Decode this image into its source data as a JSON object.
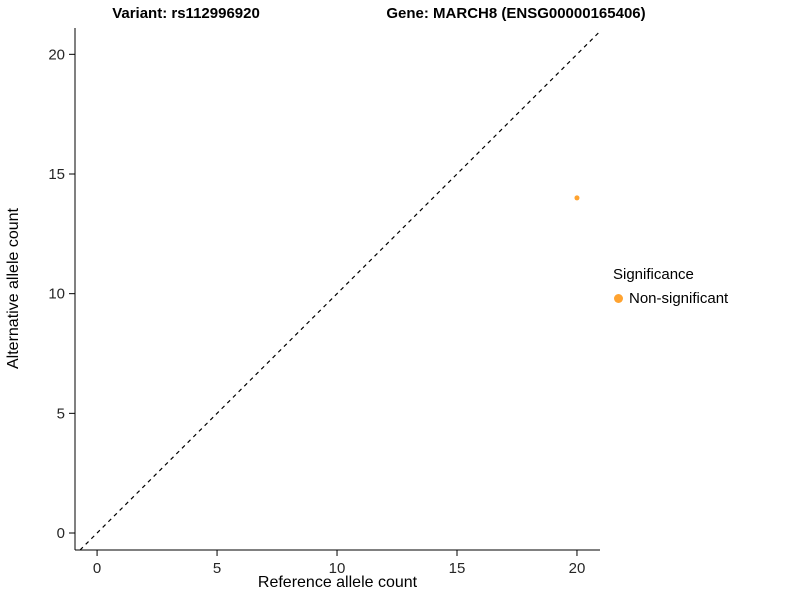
{
  "chart_data": {
    "type": "scatter",
    "title_left": "Variant: rs112996920",
    "title_right": "Gene: MARCH8 (ENSG00000165406)",
    "xlabel": "Reference allele count",
    "ylabel": "Alternative allele count",
    "xlim": [
      -0.92,
      20.96
    ],
    "ylim": [
      -0.71,
      21.1
    ],
    "xticks": [
      0,
      5,
      10,
      15,
      20
    ],
    "yticks": [
      0,
      5,
      10,
      15,
      20
    ],
    "grid": false,
    "axis_color": "#000000",
    "identity_line": {
      "style": "dashed",
      "color": "#000000",
      "from": [
        -0.71,
        -0.71
      ],
      "to": [
        20.96,
        20.96
      ]
    },
    "points": [
      {
        "x": 20,
        "y": 14,
        "series": "Non-significant",
        "r": 2.5
      }
    ],
    "legend": {
      "title": "Significance",
      "position": "right",
      "entries": [
        {
          "label": "Non-significant",
          "color": "#FFA330"
        }
      ]
    }
  }
}
